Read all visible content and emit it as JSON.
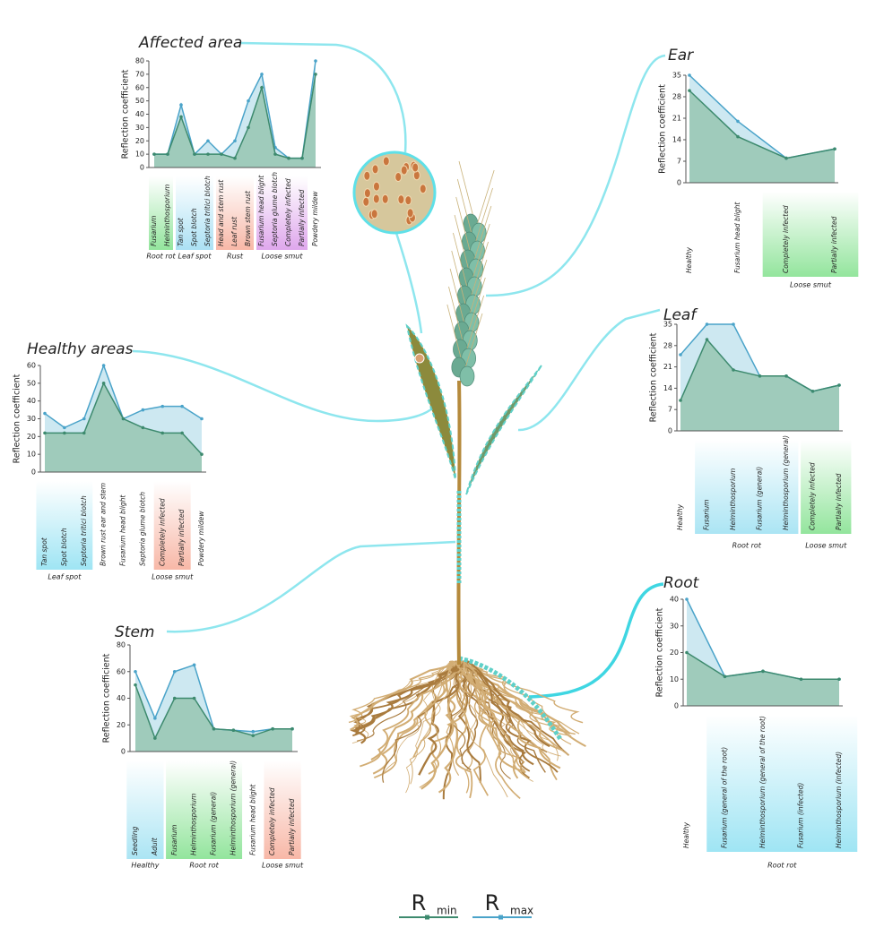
{
  "chart_data": [
    {
      "type": "area",
      "title": "Affected area",
      "ylabel": "Reflection coefficient",
      "categories": [
        "Fusarium",
        "Helminthosporium",
        "Tan spot",
        "Spot blotch",
        "Septoria tritici blotch",
        "Head and stem rust",
        "Leaf rust",
        "Brown stem rust",
        "Fusarium head blight",
        "Septoria glume blotch",
        "Completely infected",
        "Partially infected",
        "Powdery mildew"
      ],
      "groups": [
        {
          "label": "Root rot",
          "span": 2,
          "color": "#6fdc7c"
        },
        {
          "label": "Leaf spot",
          "span": 3,
          "color": "#8fd6f0"
        },
        {
          "label": "Rust",
          "span": 3,
          "color": "#f5a08a"
        },
        {
          "label": "Loose smut",
          "span": 4,
          "color": "#d48ae6"
        },
        {
          "label": null,
          "span": 1
        }
      ],
      "ylim": [
        0,
        80
      ],
      "yticks": [
        0,
        10,
        20,
        30,
        40,
        50,
        60,
        70,
        80
      ],
      "series": [
        {
          "color": "#4aa3c9",
          "fill": "#cde8f1",
          "values": [
            10,
            10,
            47,
            10,
            20,
            10,
            20,
            50,
            70,
            15,
            7,
            7,
            80
          ]
        },
        {
          "color": "#3d8a6e",
          "fill": "#9fcbbb",
          "values": [
            10,
            10,
            38,
            10,
            10,
            10,
            7,
            30,
            60,
            10,
            7,
            7,
            70
          ]
        }
      ]
    },
    {
      "type": "area",
      "title": "Ear",
      "ylabel": "Reflection coefficient",
      "categories": [
        "Healthy",
        "Fusarium head blight",
        "Completely infected",
        "Partially infected"
      ],
      "groups": [
        {
          "label": null,
          "span": 2
        },
        {
          "label": "Loose smut",
          "span": 2,
          "color": "#6fdc7c"
        }
      ],
      "ylim": [
        0,
        35
      ],
      "yticks": [
        0,
        7,
        14,
        21,
        28,
        35
      ],
      "series": [
        {
          "color": "#4aa3c9",
          "fill": "#cde8f1",
          "values": [
            35,
            20,
            8,
            11
          ]
        },
        {
          "color": "#3d8a6e",
          "fill": "#9fcbbb",
          "values": [
            30,
            15,
            8,
            11
          ]
        }
      ]
    },
    {
      "type": "area",
      "title": "Healthy areas",
      "ylabel": "Reflection coefficient",
      "categories": [
        "Tan spot",
        "Spot blotch",
        "Septoria tritici blotch",
        "Brown rust ear and stem",
        "Fusarium head blight",
        "Septoria glume blotch",
        "Completely infected",
        "Partially infected",
        "Powdery mildew"
      ],
      "groups": [
        {
          "label": "Leaf spot",
          "span": 3,
          "color": "#7fdcf0"
        },
        {
          "label": null,
          "span": 3
        },
        {
          "label": "Loose smut",
          "span": 2,
          "color": "#f5a08a"
        },
        {
          "label": null,
          "span": 1
        }
      ],
      "ylim": [
        0,
        60
      ],
      "yticks": [
        0,
        10,
        20,
        30,
        40,
        50,
        60
      ],
      "series": [
        {
          "color": "#4aa3c9",
          "fill": "#cde8f1",
          "values": [
            33,
            25,
            30,
            60,
            30,
            35,
            37,
            37,
            30
          ]
        },
        {
          "color": "#3d8a6e",
          "fill": "#9fcbbb",
          "values": [
            22,
            22,
            22,
            50,
            30,
            25,
            22,
            22,
            10
          ]
        }
      ]
    },
    {
      "type": "area",
      "title": "Leaf",
      "ylabel": "Reflection coefficient",
      "categories": [
        "Healthy",
        "Fusarium",
        "Helminthosporium",
        "Fusarium (general)",
        "Helminthosporium (general)",
        "Completely infected",
        "Partially infected"
      ],
      "groups": [
        {
          "label": null,
          "span": 1
        },
        {
          "label": "Root rot",
          "span": 4,
          "color": "#8fdcf0"
        },
        {
          "label": "Loose smut",
          "span": 2,
          "color": "#6fdc7c"
        }
      ],
      "ylim": [
        0,
        35
      ],
      "yticks": [
        0,
        7,
        14,
        21,
        28,
        35
      ],
      "series": [
        {
          "color": "#4aa3c9",
          "fill": "#cde8f1",
          "values": [
            25,
            35,
            35,
            18,
            18,
            13,
            15
          ]
        },
        {
          "color": "#3d8a6e",
          "fill": "#9fcbbb",
          "values": [
            10,
            30,
            20,
            18,
            18,
            13,
            15
          ]
        }
      ]
    },
    {
      "type": "area",
      "title": "Stem",
      "ylabel": "Reflection coefficient",
      "categories": [
        "Seedling",
        "Adult",
        "Fusarium",
        "Helminthosporium",
        "Fusarium (general)",
        "Helminthosporium (general)",
        "Fusarium head blight",
        "Completely infected",
        "Partially infected"
      ],
      "groups": [
        {
          "label": "Healthy",
          "span": 2,
          "color": "#8fdcf0"
        },
        {
          "label": "Root rot",
          "span": 4,
          "color": "#6fdc7c"
        },
        {
          "label": null,
          "span": 1
        },
        {
          "label": "Loose smut",
          "span": 2,
          "color": "#f5a08a"
        }
      ],
      "ylim": [
        0,
        80
      ],
      "yticks": [
        0,
        20,
        40,
        60,
        80
      ],
      "series": [
        {
          "color": "#4aa3c9",
          "fill": "#cde8f1",
          "values": [
            60,
            25,
            60,
            65,
            17,
            16,
            15,
            17,
            17
          ]
        },
        {
          "color": "#3d8a6e",
          "fill": "#9fcbbb",
          "values": [
            50,
            10,
            40,
            40,
            17,
            16,
            12,
            17,
            17
          ]
        }
      ]
    },
    {
      "type": "area",
      "title": "Root",
      "ylabel": "Reflection coefficient",
      "categories": [
        "Healthy",
        "Fusarium (general of the root)",
        "Helminthosporium (general of the root)",
        "Fusarium (infected)",
        "Helminthosporium (infected)"
      ],
      "groups": [
        {
          "label": null,
          "span": 1
        },
        {
          "label": "Root rot",
          "span": 4,
          "color": "#7fdcf0"
        }
      ],
      "ylim": [
        0,
        40
      ],
      "yticks": [
        0,
        10,
        20,
        30,
        40
      ],
      "series": [
        {
          "color": "#4aa3c9",
          "fill": "#cde8f1",
          "values": [
            40,
            11,
            13,
            10,
            10
          ]
        },
        {
          "color": "#3d8a6e",
          "fill": "#9fcbbb",
          "values": [
            20,
            11,
            13,
            10,
            10
          ]
        }
      ]
    }
  ],
  "legend": [
    {
      "symbol": "R",
      "subscript": "min",
      "color": "#3d8a6e"
    },
    {
      "symbol": "R",
      "subscript": "max",
      "color": "#4aa3c9"
    }
  ]
}
